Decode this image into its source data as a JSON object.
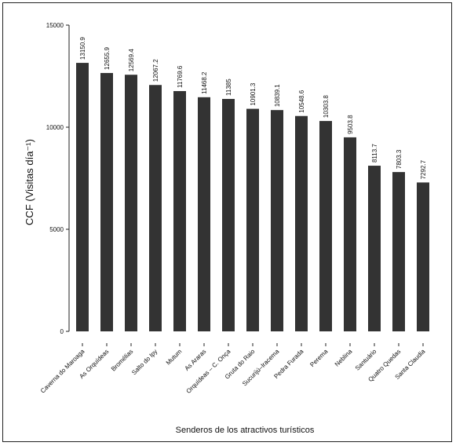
{
  "chart_data": {
    "type": "bar",
    "xlabel": "Senderos de los atractivos turísticos",
    "ylabel": "CCF  (Visitas día⁻¹)",
    "ylim": [
      0,
      15000
    ],
    "yticks": [
      0,
      5000,
      10000,
      15000
    ],
    "grid": false,
    "color": "#333333",
    "categories": [
      "Caverna do Maroaga",
      "As Orquídeas",
      "Bromélias",
      "Salto do Ipy",
      "Mutum",
      "As Araras",
      "Orquídeas – C. Onça",
      "Gruta do Raio",
      "Sucurijú–Iracema",
      "Pedra Furada",
      "Perema",
      "Neblina",
      "Santuário",
      "Quatro Quedas",
      "Santa Claudia"
    ],
    "values": [
      13150.9,
      12655.9,
      12569.4,
      12067.2,
      11769.6,
      11468.2,
      11385,
      10901.3,
      10839.1,
      10548.6,
      10303.8,
      9503.8,
      8113.7,
      7803.3,
      7292.7
    ],
    "value_labels": [
      "13150.9",
      "12655.9",
      "12569.4",
      "12067.2",
      "11769.6",
      "11468.2",
      "11385",
      "10901.3",
      "10839.1",
      "10548.6",
      "10303.8",
      "9503.8",
      "8113.7",
      "7803.3",
      "7292.7"
    ]
  }
}
